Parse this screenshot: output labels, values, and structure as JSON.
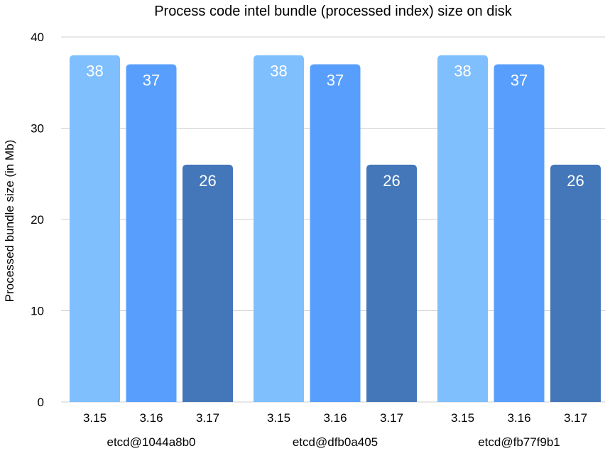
{
  "chart_data": {
    "type": "bar",
    "title": "Process code intel bundle (processed index) size on disk",
    "ylabel": "Processed bundle size (in Mb)",
    "xlabel": "",
    "ylim": [
      0,
      40
    ],
    "yticks": [
      0,
      10,
      20,
      30,
      40
    ],
    "grid": true,
    "groups": [
      {
        "name": "etcd@1044a8b0",
        "bars": [
          {
            "label": "3.15",
            "value": 38
          },
          {
            "label": "3.16",
            "value": 37
          },
          {
            "label": "3.17",
            "value": 26
          }
        ]
      },
      {
        "name": "etcd@dfb0a405",
        "bars": [
          {
            "label": "3.15",
            "value": 38
          },
          {
            "label": "3.16",
            "value": 37
          },
          {
            "label": "3.17",
            "value": 26
          }
        ]
      },
      {
        "name": "etcd@fb77f9b1",
        "bars": [
          {
            "label": "3.15",
            "value": 38
          },
          {
            "label": "3.16",
            "value": 37
          },
          {
            "label": "3.17",
            "value": 26
          }
        ]
      }
    ],
    "colors": [
      "#80bffe",
      "#589ffd",
      "#4477b9"
    ]
  }
}
